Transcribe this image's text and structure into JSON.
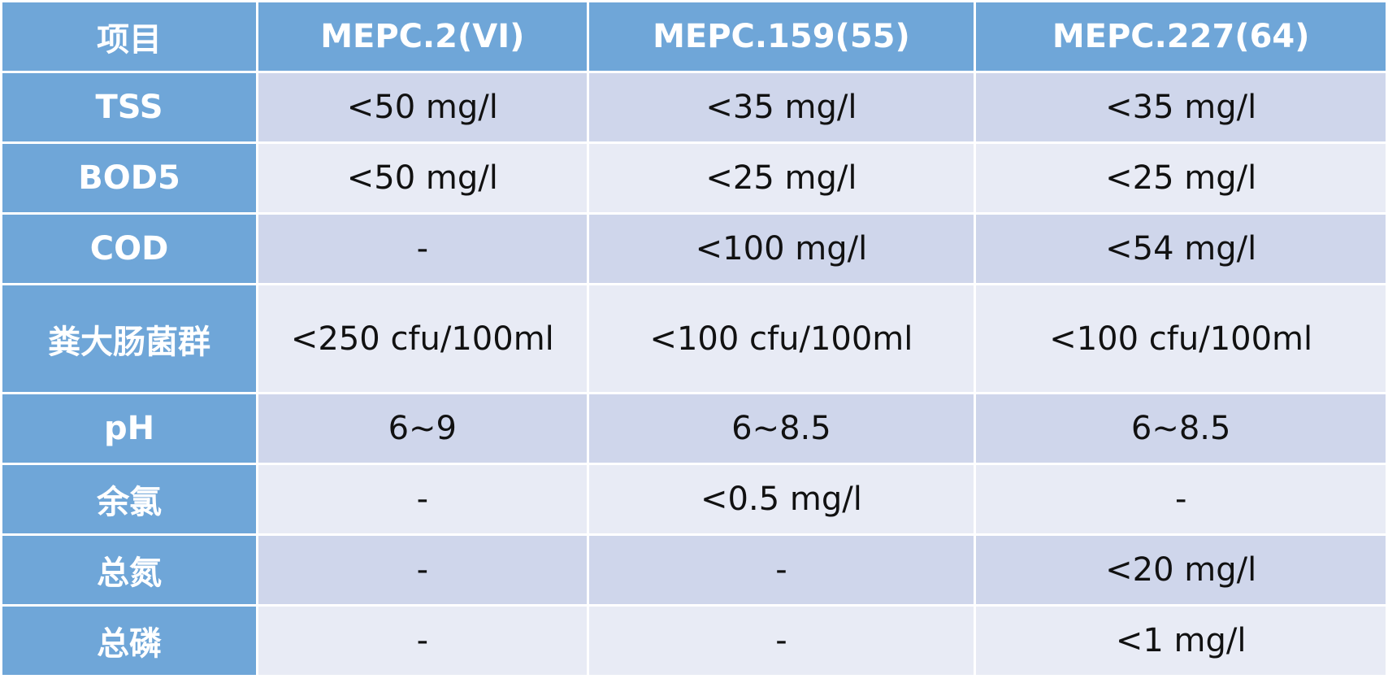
{
  "table": {
    "headers": [
      "项目",
      "MEPC.2(VI)",
      "MEPC.159(55)",
      "MEPC.227(64)"
    ],
    "rows": [
      {
        "item": "TSS",
        "mepc2": "<50 mg/l",
        "mepc159": "<35 mg/l",
        "mepc227": "<35 mg/l"
      },
      {
        "item": "BOD5",
        "mepc2": "<50 mg/l",
        "mepc159": "<25 mg/l",
        "mepc227": "<25 mg/l"
      },
      {
        "item": "COD",
        "mepc2": "-",
        "mepc159": "<100 mg/l",
        "mepc227": "<54 mg/l"
      },
      {
        "item": "粪大肠菌群",
        "mepc2": "<250 cfu/100ml",
        "mepc159": "<100 cfu/100ml",
        "mepc227": "<100 cfu/100ml"
      },
      {
        "item": "pH",
        "mepc2": "6~9",
        "mepc159": "6~8.5",
        "mepc227": "6~8.5"
      },
      {
        "item": "余氯",
        "mepc2": "-",
        "mepc159": "<0.5 mg/l",
        "mepc227": "-"
      },
      {
        "item": "总氮",
        "mepc2": "-",
        "mepc159": "-",
        "mepc227": "<20 mg/l"
      },
      {
        "item": "总磷",
        "mepc2": "-",
        "mepc159": "-",
        "mepc227": "<1 mg/l"
      }
    ]
  },
  "colors": {
    "header_bg": "#6fa6d8",
    "row_band_dark": "#cfd6eb",
    "row_band_light": "#e8ebf5",
    "header_text": "#ffffff",
    "cell_text": "#111111"
  }
}
